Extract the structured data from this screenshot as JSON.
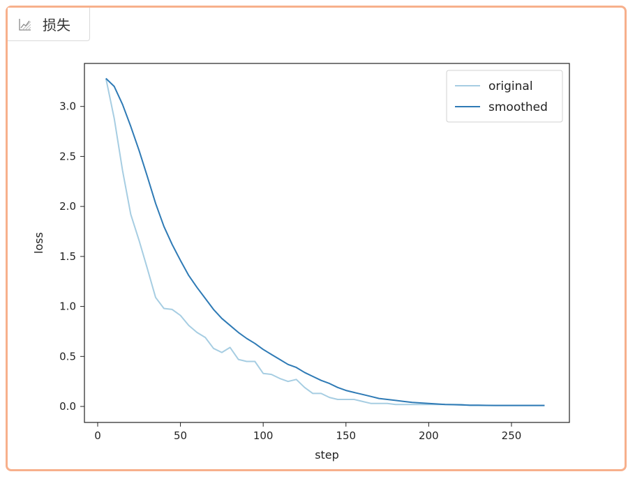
{
  "tab": {
    "label": "损失",
    "icon": "chart-line-icon"
  },
  "colors": {
    "original": "#a6cde2",
    "smoothed": "#2e7ab5",
    "border": "#f7b08c"
  },
  "chart_data": {
    "type": "line",
    "xlabel": "step",
    "ylabel": "loss",
    "xlim": [
      -8,
      285
    ],
    "ylim": [
      -0.16,
      3.43
    ],
    "xticks": [
      0,
      50,
      100,
      150,
      200,
      250
    ],
    "yticks": [
      0.0,
      0.5,
      1.0,
      1.5,
      2.0,
      2.5,
      3.0
    ],
    "xtick_labels": [
      "0",
      "50",
      "100",
      "150",
      "200",
      "250"
    ],
    "ytick_labels": [
      "0.0",
      "0.5",
      "1.0",
      "1.5",
      "2.0",
      "2.5",
      "3.0"
    ],
    "legend_position": "top-right",
    "series": [
      {
        "name": "original",
        "x": [
          5,
          10,
          15,
          20,
          25,
          30,
          35,
          40,
          45,
          50,
          55,
          60,
          65,
          70,
          75,
          80,
          85,
          90,
          95,
          100,
          105,
          110,
          115,
          120,
          125,
          130,
          135,
          140,
          145,
          150,
          155,
          160,
          165,
          170,
          175,
          180,
          185,
          190,
          195,
          200,
          205,
          210,
          215,
          220,
          225,
          230,
          235,
          240,
          245,
          250,
          255,
          260,
          265,
          270
        ],
        "y": [
          3.28,
          2.88,
          2.36,
          1.92,
          1.66,
          1.38,
          1.09,
          0.98,
          0.97,
          0.91,
          0.81,
          0.74,
          0.69,
          0.58,
          0.54,
          0.59,
          0.47,
          0.45,
          0.45,
          0.33,
          0.32,
          0.28,
          0.25,
          0.27,
          0.19,
          0.13,
          0.13,
          0.09,
          0.07,
          0.07,
          0.07,
          0.05,
          0.03,
          0.03,
          0.03,
          0.02,
          0.02,
          0.02,
          0.02,
          0.02,
          0.02,
          0.02,
          0.02,
          0.02,
          0.01,
          0.01,
          0.01,
          0.01,
          0.01,
          0.01,
          0.01,
          0.01,
          0.01,
          0.01
        ]
      },
      {
        "name": "smoothed",
        "x": [
          5,
          10,
          15,
          20,
          25,
          30,
          35,
          40,
          45,
          50,
          55,
          60,
          65,
          70,
          75,
          80,
          85,
          90,
          95,
          100,
          105,
          110,
          115,
          120,
          125,
          130,
          135,
          140,
          145,
          150,
          155,
          160,
          165,
          170,
          175,
          180,
          185,
          190,
          195,
          200,
          205,
          210,
          215,
          220,
          225,
          230,
          235,
          240,
          245,
          250,
          255,
          260,
          265,
          270
        ],
        "y": [
          3.28,
          3.2,
          3.02,
          2.8,
          2.56,
          2.3,
          2.03,
          1.8,
          1.62,
          1.46,
          1.31,
          1.19,
          1.08,
          0.97,
          0.88,
          0.81,
          0.74,
          0.68,
          0.63,
          0.57,
          0.52,
          0.47,
          0.42,
          0.39,
          0.34,
          0.3,
          0.26,
          0.23,
          0.19,
          0.16,
          0.14,
          0.12,
          0.1,
          0.08,
          0.07,
          0.06,
          0.05,
          0.04,
          0.035,
          0.03,
          0.025,
          0.02,
          0.018,
          0.015,
          0.013,
          0.012,
          0.011,
          0.01,
          0.01,
          0.01,
          0.01,
          0.01,
          0.01,
          0.01
        ]
      }
    ]
  }
}
